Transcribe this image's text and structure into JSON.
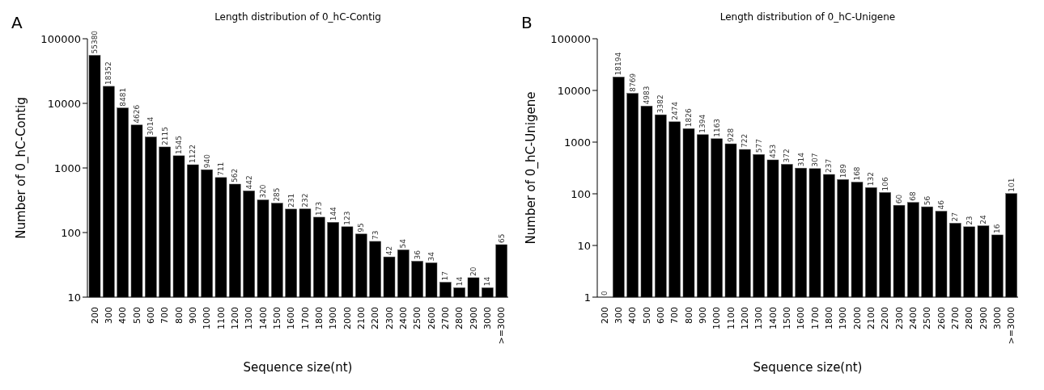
{
  "chart_data": [
    {
      "type": "bar",
      "title": "Length distribution of 0_hC-Contig",
      "xlabel": "Sequence size(nt)",
      "ylabel": "Number of 0_hC-Contig",
      "annotations": [
        "A"
      ],
      "categories": [
        "200",
        "300",
        "400",
        "500",
        "600",
        "700",
        "800",
        "900",
        "1000",
        "1100",
        "1200",
        "1300",
        "1400",
        "1500",
        "1600",
        "1700",
        "1800",
        "1900",
        "2000",
        "2100",
        "2200",
        "2300",
        "2400",
        "2500",
        "2600",
        "2700",
        "2800",
        "2900",
        "3000",
        ">=3000"
      ],
      "values": [
        55380,
        18352,
        8481,
        4626,
        3014,
        2115,
        1545,
        1122,
        940,
        711,
        562,
        442,
        320,
        285,
        231,
        232,
        173,
        144,
        123,
        95,
        73,
        42,
        54,
        36,
        34,
        17,
        14,
        20,
        14,
        65
      ],
      "color": "#000000",
      "log": true,
      "ylim": [
        10,
        100000
      ],
      "yticks": [
        10,
        100,
        1000,
        10000,
        100000
      ],
      "data_labels": true,
      "grid": false,
      "legend": false
    },
    {
      "type": "bar",
      "title": "Length distribution of 0_hC-Unigene",
      "xlabel": "Sequence size(nt)",
      "ylabel": "Number of 0_hC-Unigene",
      "annotations": [
        "B"
      ],
      "categories": [
        "200",
        "300",
        "400",
        "500",
        "600",
        "700",
        "800",
        "900",
        "1000",
        "1100",
        "1200",
        "1300",
        "1400",
        "1500",
        "1600",
        "1700",
        "1800",
        "1900",
        "2000",
        "2100",
        "2200",
        "2300",
        "2400",
        "2500",
        "2600",
        "2700",
        "2800",
        "2900",
        "3000",
        ">=3000"
      ],
      "values": [
        null,
        18194,
        8769,
        4983,
        3382,
        2474,
        1826,
        1394,
        1163,
        928,
        722,
        577,
        453,
        372,
        314,
        307,
        237,
        189,
        168,
        132,
        106,
        60,
        68,
        56,
        46,
        27,
        23,
        24,
        16,
        101
      ],
      "value_labels": [
        "0",
        "18194",
        "8769",
        "4983",
        "3382",
        "2474",
        "1826",
        "1394",
        "1163",
        "928",
        "722",
        "577",
        "453",
        "372",
        "314",
        "307",
        "237",
        "189",
        "168",
        "132",
        "106",
        "60",
        "68",
        "56",
        "46",
        "27",
        "23",
        "24",
        "16",
        "101"
      ],
      "color": "#000000",
      "log": true,
      "ylim": [
        1,
        100000
      ],
      "yticks": [
        1,
        10,
        100,
        1000,
        10000,
        100000
      ],
      "grid": false,
      "legend": false
    }
  ]
}
